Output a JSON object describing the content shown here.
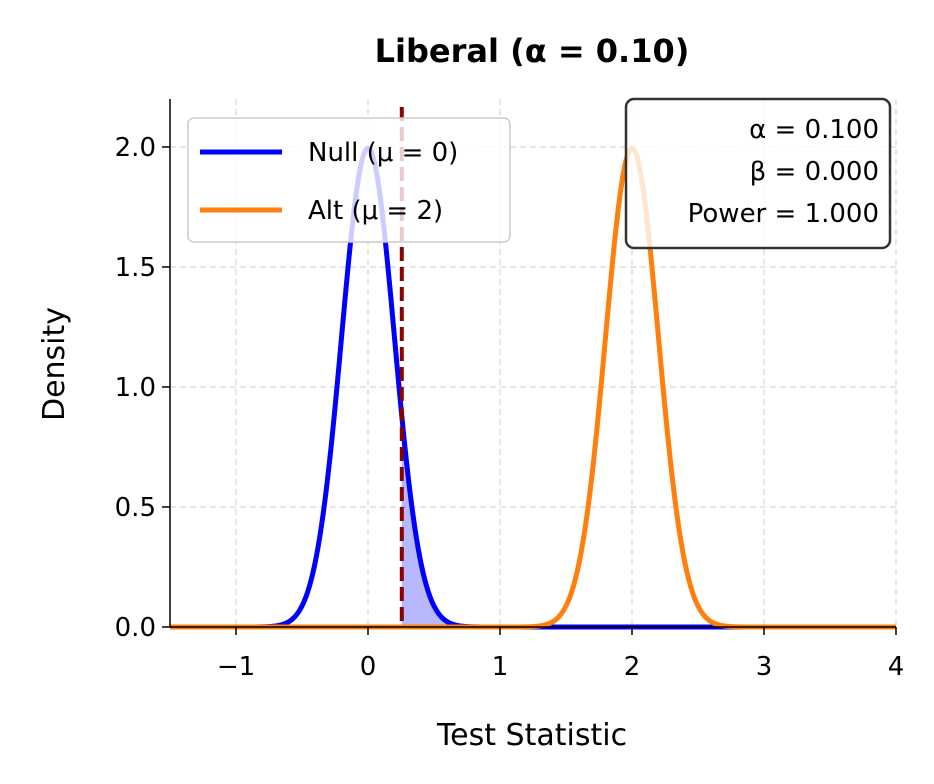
{
  "chart_data": {
    "type": "line",
    "title": "Liberal (α = 0.10)",
    "xlabel": "Test Statistic",
    "ylabel": "Density",
    "xlim": [
      -1.5,
      4
    ],
    "ylim": [
      0,
      2.2
    ],
    "xticks": [
      -1,
      0,
      1,
      2,
      3,
      4
    ],
    "xtick_labels": [
      "−1",
      "0",
      "1",
      "2",
      "3",
      "4"
    ],
    "yticks": [
      0,
      0.5,
      1.0,
      1.5,
      2.0
    ],
    "ytick_labels": [
      "0.0",
      "0.5",
      "1.0",
      "1.5",
      "2.0"
    ],
    "grid": true,
    "legend_placement": "upper-left",
    "series": [
      {
        "name": "Null (μ = 0)",
        "distribution": "normal",
        "mean": 0,
        "sd": 0.2,
        "color": "#0000ff"
      },
      {
        "name": "Alt (μ = 2)",
        "distribution": "normal",
        "mean": 2,
        "sd": 0.2,
        "color": "#ff7f0e"
      }
    ],
    "critical_value": 0.256,
    "critical_line_color": "#8b0000",
    "alpha_fill_color": "#0000ff",
    "annotation": {
      "lines": [
        "α = 0.100",
        "β = 0.000",
        "Power = 1.000"
      ],
      "placement": "upper-right"
    }
  }
}
